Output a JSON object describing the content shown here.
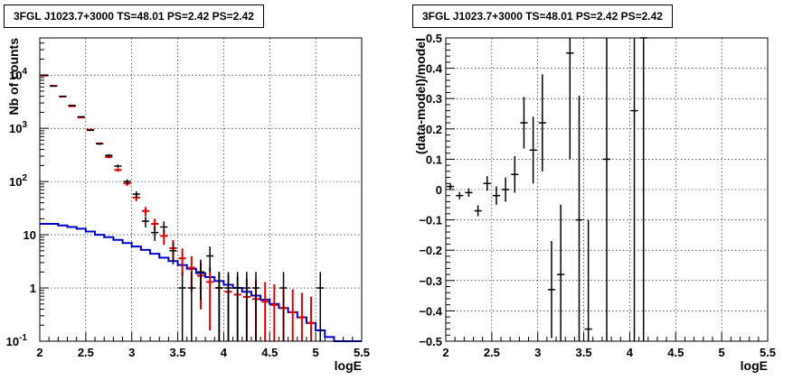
{
  "chart_data": [
    {
      "type": "histogram",
      "title": "3FGL J1023.7+3000 TS=48.01 PS=2.42 PS=2.42",
      "xlabel": "logE",
      "ylabel": "Nb of counts",
      "xlim": [
        2,
        5.5
      ],
      "ylim": [
        0.1,
        50000
      ],
      "yscale": "log",
      "grid": true,
      "x_ticks": [
        "2",
        "2.5",
        "3",
        "3.5",
        "4",
        "4.5",
        "5",
        "5.5"
      ],
      "y_ticks": [
        {
          "v": 0.1,
          "base": "10",
          "exp": "-1"
        },
        {
          "v": 1,
          "base": "1",
          "exp": ""
        },
        {
          "v": 10,
          "base": "10",
          "exp": ""
        },
        {
          "v": 100,
          "base": "10",
          "exp": "2"
        },
        {
          "v": 1000,
          "base": "10",
          "exp": "3"
        },
        {
          "v": 10000,
          "base": "10",
          "exp": "4"
        }
      ],
      "series": [
        {
          "role": "data",
          "color": "#000000",
          "points": [
            {
              "x": 2.05,
              "y": 10000
            },
            {
              "x": 2.15,
              "y": 6200
            },
            {
              "x": 2.25,
              "y": 4000
            },
            {
              "x": 2.35,
              "y": 2700
            },
            {
              "x": 2.45,
              "y": 1650
            },
            {
              "x": 2.55,
              "y": 920
            },
            {
              "x": 2.65,
              "y": 510
            },
            {
              "x": 2.75,
              "y": 310
            },
            {
              "x": 2.85,
              "y": 195
            },
            {
              "x": 2.95,
              "y": 100
            },
            {
              "x": 3.05,
              "y": 58
            },
            {
              "x": 3.15,
              "y": 18
            },
            {
              "x": 3.25,
              "y": 11
            },
            {
              "x": 3.35,
              "y": 14
            },
            {
              "x": 3.45,
              "y": 5
            },
            {
              "x": 3.55,
              "y": 1
            },
            {
              "x": 3.65,
              "y": 1
            },
            {
              "x": 3.75,
              "y": 2
            },
            {
              "x": 3.85,
              "y": 4
            },
            {
              "x": 3.95,
              "y": 1
            },
            {
              "x": 4.05,
              "y": 1
            },
            {
              "x": 4.15,
              "y": 1
            },
            {
              "x": 4.25,
              "y": 1
            },
            {
              "x": 4.35,
              "y": 1
            },
            {
              "x": 4.65,
              "y": 1
            },
            {
              "x": 5.05,
              "y": 1
            }
          ]
        },
        {
          "role": "model",
          "color": "#dd0000",
          "points": [
            {
              "x": 2.05,
              "y": 9800
            },
            {
              "x": 2.15,
              "y": 6300
            },
            {
              "x": 2.25,
              "y": 3950
            },
            {
              "x": 2.35,
              "y": 2600
            },
            {
              "x": 2.45,
              "y": 1600
            },
            {
              "x": 2.55,
              "y": 940
            },
            {
              "x": 2.65,
              "y": 520
            },
            {
              "x": 2.75,
              "y": 290
            },
            {
              "x": 2.85,
              "y": 165
            },
            {
              "x": 2.95,
              "y": 92
            },
            {
              "x": 3.05,
              "y": 50
            },
            {
              "x": 3.15,
              "y": 28
            },
            {
              "x": 3.25,
              "y": 16
            },
            {
              "x": 3.35,
              "y": 9.5
            },
            {
              "x": 3.45,
              "y": 5.6
            },
            {
              "x": 3.55,
              "y": 3.6
            },
            {
              "x": 3.65,
              "y": 2.4
            },
            {
              "x": 3.75,
              "y": 1.7
            },
            {
              "x": 3.85,
              "y": 1.3
            },
            {
              "x": 3.95,
              "y": 1.0
            },
            {
              "x": 4.05,
              "y": 0.85
            },
            {
              "x": 4.15,
              "y": 0.75
            },
            {
              "x": 4.25,
              "y": 0.68
            },
            {
              "x": 4.35,
              "y": 0.62
            },
            {
              "x": 4.45,
              "y": 0.55
            },
            {
              "x": 4.55,
              "y": 0.48
            },
            {
              "x": 4.65,
              "y": 0.42
            },
            {
              "x": 4.75,
              "y": 0.35
            },
            {
              "x": 4.85,
              "y": 0.28
            },
            {
              "x": 4.95,
              "y": 0.22
            }
          ]
        },
        {
          "role": "background-histogram",
          "color": "#0000cc",
          "bin_width": 0.1,
          "bins": [
            {
              "x": 2.05,
              "y": 16
            },
            {
              "x": 2.15,
              "y": 16
            },
            {
              "x": 2.25,
              "y": 15
            },
            {
              "x": 2.35,
              "y": 14
            },
            {
              "x": 2.45,
              "y": 13
            },
            {
              "x": 2.55,
              "y": 11.5
            },
            {
              "x": 2.65,
              "y": 10
            },
            {
              "x": 2.75,
              "y": 9
            },
            {
              "x": 2.85,
              "y": 8
            },
            {
              "x": 2.95,
              "y": 7
            },
            {
              "x": 3.05,
              "y": 6
            },
            {
              "x": 3.15,
              "y": 5.2
            },
            {
              "x": 3.25,
              "y": 4.4
            },
            {
              "x": 3.35,
              "y": 3.7
            },
            {
              "x": 3.45,
              "y": 3.2
            },
            {
              "x": 3.55,
              "y": 2.7
            },
            {
              "x": 3.65,
              "y": 2.3
            },
            {
              "x": 3.75,
              "y": 1.9
            },
            {
              "x": 3.85,
              "y": 1.6
            },
            {
              "x": 3.95,
              "y": 1.35
            },
            {
              "x": 4.05,
              "y": 1.15
            },
            {
              "x": 4.15,
              "y": 1.0
            },
            {
              "x": 4.25,
              "y": 0.85
            },
            {
              "x": 4.35,
              "y": 0.72
            },
            {
              "x": 4.45,
              "y": 0.6
            },
            {
              "x": 4.55,
              "y": 0.5
            },
            {
              "x": 4.65,
              "y": 0.42
            },
            {
              "x": 4.75,
              "y": 0.35
            },
            {
              "x": 4.85,
              "y": 0.28
            },
            {
              "x": 4.95,
              "y": 0.22
            },
            {
              "x": 5.05,
              "y": 0.16
            },
            {
              "x": 5.15,
              "y": 0.12
            },
            {
              "x": 5.25,
              "y": 0.1
            },
            {
              "x": 5.35,
              "y": 0.1
            },
            {
              "x": 5.45,
              "y": 0.1
            }
          ]
        }
      ]
    },
    {
      "type": "scatter",
      "title": "3FGL J1023.7+3000 TS=48.01 PS=2.42 PS=2.42",
      "xlabel": "logE",
      "ylabel": "(data-model)/model",
      "xlim": [
        2,
        5.5
      ],
      "ylim": [
        -0.5,
        0.5
      ],
      "grid": true,
      "x_ticks": [
        "2",
        "2.5",
        "3",
        "3.5",
        "4",
        "4.5",
        "5",
        "5.5"
      ],
      "y_ticks": [
        "−0.5",
        "−0.4",
        "−0.3",
        "−0.2",
        "−0.1",
        "0",
        "0.1",
        "0.2",
        "0.3",
        "0.4",
        "0.5"
      ],
      "series": [
        {
          "color": "#000000",
          "points": [
            {
              "x": 2.05,
              "y": 0.01,
              "err": 0.01
            },
            {
              "x": 2.15,
              "y": -0.02,
              "err": 0.012
            },
            {
              "x": 2.25,
              "y": -0.01,
              "err": 0.014
            },
            {
              "x": 2.35,
              "y": -0.07,
              "err": 0.018
            },
            {
              "x": 2.45,
              "y": 0.02,
              "err": 0.024
            },
            {
              "x": 2.55,
              "y": -0.02,
              "err": 0.03
            },
            {
              "x": 2.65,
              "y": 0.0,
              "err": 0.04
            },
            {
              "x": 2.75,
              "y": 0.05,
              "err": 0.06
            },
            {
              "x": 2.85,
              "y": 0.22,
              "err": 0.085
            },
            {
              "x": 2.95,
              "y": 0.13,
              "err": 0.11
            },
            {
              "x": 3.05,
              "y": 0.22,
              "err": 0.16
            },
            {
              "x": 3.15,
              "y": -0.33,
              "err": 0.16
            },
            {
              "x": 3.25,
              "y": -0.28,
              "err": 0.23
            },
            {
              "x": 3.35,
              "y": 0.45,
              "err": 0.35
            },
            {
              "x": 3.45,
              "y": -0.1,
              "err": 0.41
            },
            {
              "x": 3.55,
              "y": -0.46,
              "err": 0.36
            },
            {
              "x": 3.75,
              "y": 0.1,
              "err": 0.7
            },
            {
              "x": 4.05,
              "y": 0.26,
              "err": 0.8
            },
            {
              "x": 4.15,
              "y": 0.5,
              "err": 1.0
            }
          ]
        }
      ]
    }
  ]
}
